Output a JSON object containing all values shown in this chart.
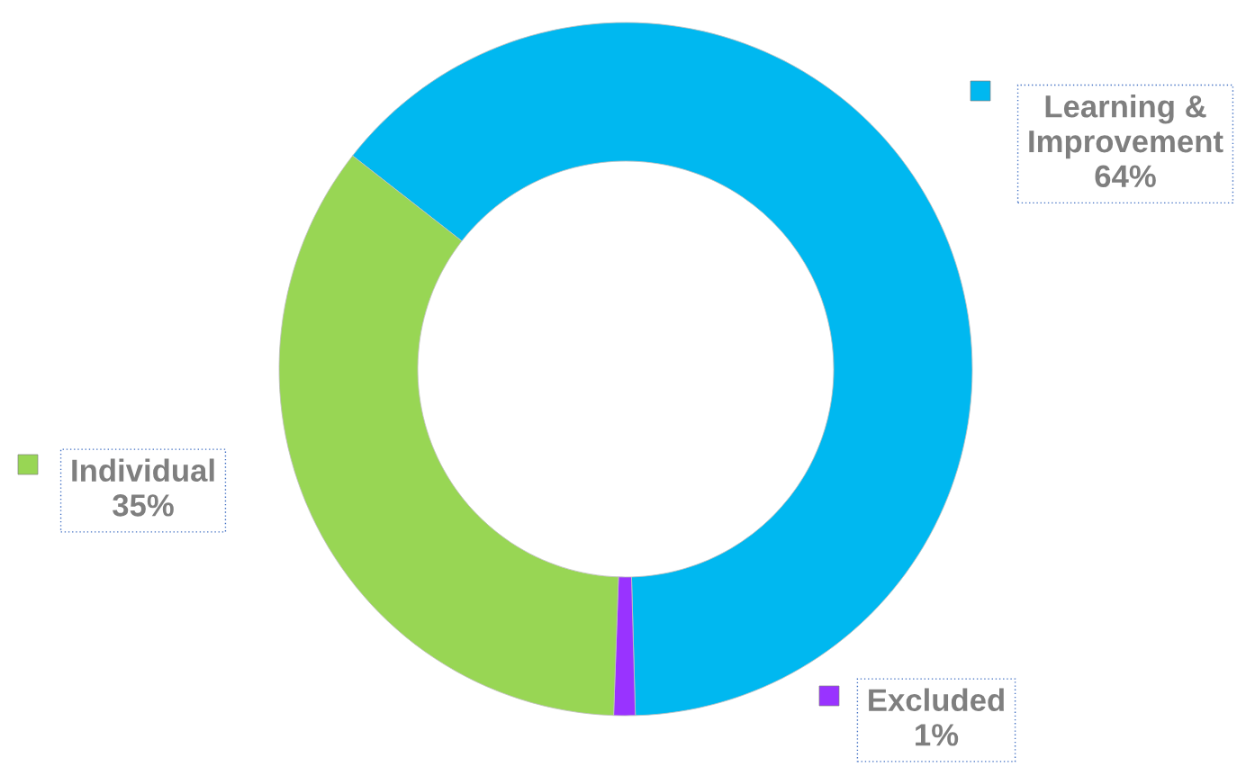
{
  "chart_data": {
    "type": "donut",
    "categories": [
      "Learning & Improvement",
      "Excluded",
      "Individual"
    ],
    "values": [
      64,
      1,
      35
    ],
    "value_labels": [
      "64%",
      "1%",
      "35%"
    ],
    "colors": [
      "#00b8f0",
      "#9933ff",
      "#98d654"
    ],
    "legend": "right"
  }
}
